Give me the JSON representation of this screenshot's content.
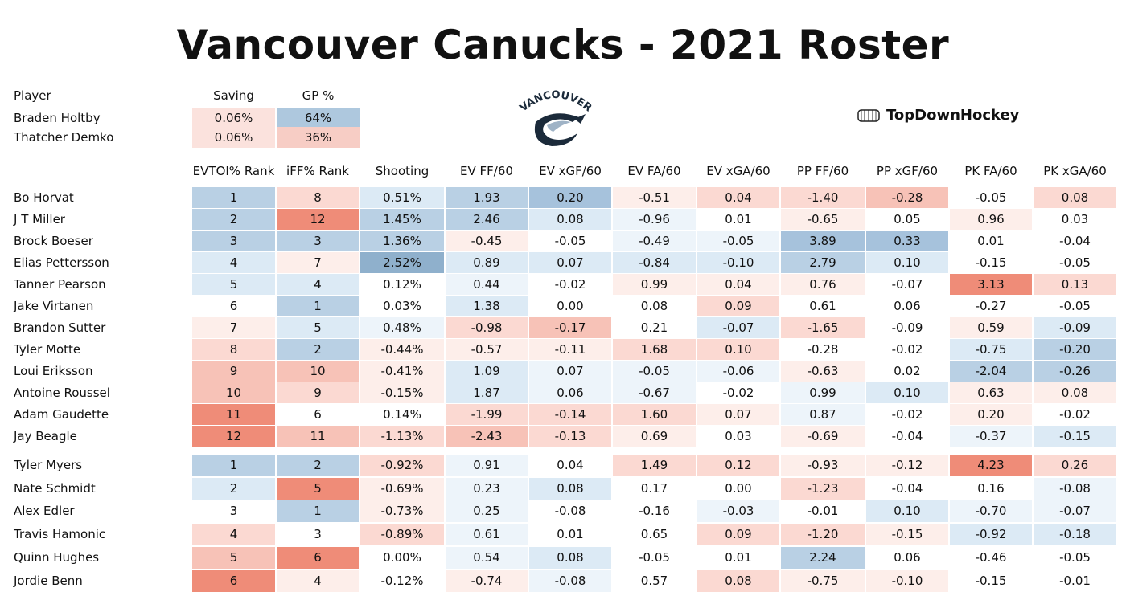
{
  "title": "Vancouver Canucks - 2021 Roster",
  "brand": {
    "name": "TopDownHockey",
    "icon": "rink-icon"
  },
  "logo": {
    "wordmark": "VANCOUVER",
    "icon": "canucks-orca-logo-icon"
  },
  "colors": {
    "blue_strong": "#9dbcd6",
    "blue_light": "#dceaf5",
    "red_strong": "#ef8c78",
    "red_light": "#fbe2dd",
    "neutral": "#ffffff"
  },
  "goalie_table": {
    "headers": [
      "Player",
      "Saving",
      "GP %"
    ],
    "rows": [
      {
        "name": "Braden Holtby",
        "saving": "0.06%",
        "gp": "64%"
      },
      {
        "name": "Thatcher Demko",
        "saving": "0.06%",
        "gp": "36%"
      }
    ]
  },
  "skater_headers": [
    "EVTOI% Rank",
    "iFF% Rank",
    "Shooting",
    "EV FF/60",
    "EV xGF/60",
    "EV FA/60",
    "EV xGA/60",
    "PP FF/60",
    "PP xGF/60",
    "PK FA/60",
    "PK xGA/60"
  ],
  "forwards": [
    {
      "name": "Bo Horvat",
      "values": [
        "1",
        "8",
        "0.51%",
        "1.93",
        "0.20",
        "-0.51",
        "0.04",
        "-1.40",
        "-0.28",
        "-0.05",
        "0.08"
      ]
    },
    {
      "name": "J T  Miller",
      "values": [
        "2",
        "12",
        "1.45%",
        "2.46",
        "0.08",
        "-0.96",
        "0.01",
        "-0.65",
        "0.05",
        "0.96",
        "0.03"
      ]
    },
    {
      "name": "Brock Boeser",
      "values": [
        "3",
        "3",
        "1.36%",
        "-0.45",
        "-0.05",
        "-0.49",
        "-0.05",
        "3.89",
        "0.33",
        "0.01",
        "-0.04"
      ]
    },
    {
      "name": "Elias Pettersson",
      "values": [
        "4",
        "7",
        "2.52%",
        "0.89",
        "0.07",
        "-0.84",
        "-0.10",
        "2.79",
        "0.10",
        "-0.15",
        "-0.05"
      ]
    },
    {
      "name": "Tanner Pearson",
      "values": [
        "5",
        "4",
        "0.12%",
        "0.44",
        "-0.02",
        "0.99",
        "0.04",
        "0.76",
        "-0.07",
        "3.13",
        "0.13"
      ]
    },
    {
      "name": "Jake Virtanen",
      "values": [
        "6",
        "1",
        "0.03%",
        "1.38",
        "0.00",
        "0.08",
        "0.09",
        "0.61",
        "0.06",
        "-0.27",
        "-0.05"
      ]
    },
    {
      "name": "Brandon Sutter",
      "values": [
        "7",
        "5",
        "0.48%",
        "-0.98",
        "-0.17",
        "0.21",
        "-0.07",
        "-1.65",
        "-0.09",
        "0.59",
        "-0.09"
      ]
    },
    {
      "name": "Tyler Motte",
      "values": [
        "8",
        "2",
        "-0.44%",
        "-0.57",
        "-0.11",
        "1.68",
        "0.10",
        "-0.28",
        "-0.02",
        "-0.75",
        "-0.20"
      ]
    },
    {
      "name": "Loui Eriksson",
      "values": [
        "9",
        "10",
        "-0.41%",
        "1.09",
        "0.07",
        "-0.05",
        "-0.06",
        "-0.63",
        "0.02",
        "-2.04",
        "-0.26"
      ]
    },
    {
      "name": "Antoine Roussel",
      "values": [
        "10",
        "9",
        "-0.15%",
        "1.87",
        "0.06",
        "-0.67",
        "-0.02",
        "0.99",
        "0.10",
        "0.63",
        "0.08"
      ]
    },
    {
      "name": "Adam Gaudette",
      "values": [
        "11",
        "6",
        "0.14%",
        "-1.99",
        "-0.14",
        "1.60",
        "0.07",
        "0.87",
        "-0.02",
        "0.20",
        "-0.02"
      ]
    },
    {
      "name": "Jay Beagle",
      "values": [
        "12",
        "11",
        "-1.13%",
        "-2.43",
        "-0.13",
        "0.69",
        "0.03",
        "-0.69",
        "-0.04",
        "-0.37",
        "-0.15"
      ]
    }
  ],
  "defense": [
    {
      "name": "Tyler Myers",
      "values": [
        "1",
        "2",
        "-0.92%",
        "0.91",
        "0.04",
        "1.49",
        "0.12",
        "-0.93",
        "-0.12",
        "4.23",
        "0.26"
      ]
    },
    {
      "name": "Nate Schmidt",
      "values": [
        "2",
        "5",
        "-0.69%",
        "0.23",
        "0.08",
        "0.17",
        "0.00",
        "-1.23",
        "-0.04",
        "0.16",
        "-0.08"
      ]
    },
    {
      "name": "Alex Edler",
      "values": [
        "3",
        "1",
        "-0.73%",
        "0.25",
        "-0.08",
        "-0.16",
        "-0.03",
        "-0.01",
        "0.10",
        "-0.70",
        "-0.07"
      ]
    },
    {
      "name": "Travis Hamonic",
      "values": [
        "4",
        "3",
        "-0.89%",
        "0.61",
        "0.01",
        "0.65",
        "0.09",
        "-1.20",
        "-0.15",
        "-0.92",
        "-0.18"
      ]
    },
    {
      "name": "Quinn Hughes",
      "values": [
        "5",
        "6",
        "0.00%",
        "0.54",
        "0.08",
        "-0.05",
        "0.01",
        "2.24",
        "0.06",
        "-0.46",
        "-0.05"
      ]
    },
    {
      "name": "Jordie Benn",
      "values": [
        "6",
        "4",
        "-0.12%",
        "-0.74",
        "-0.08",
        "0.57",
        "0.08",
        "-0.75",
        "-0.10",
        "-0.15",
        "-0.01"
      ]
    }
  ]
}
